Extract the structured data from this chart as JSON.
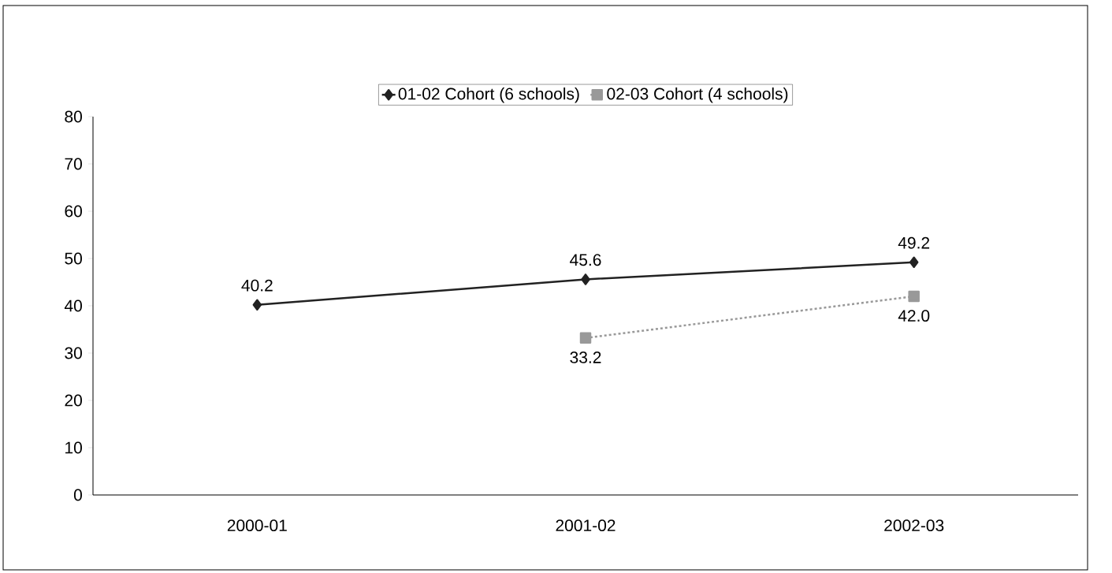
{
  "chart_data": {
    "type": "line",
    "categories": [
      "2000-01",
      "2001-02",
      "2002-03"
    ],
    "series": [
      {
        "name": "01-02 Cohort (6 schools)",
        "color": "#222222",
        "values": [
          40.2,
          45.6,
          49.2
        ],
        "marker": "diamond",
        "line_style": "solid",
        "value_labels": [
          "40.2",
          "45.6",
          "49.2"
        ]
      },
      {
        "name": "02-03 Cohort (4 schools)",
        "color": "#999999",
        "values": [
          null,
          33.2,
          42.0
        ],
        "marker": "square",
        "line_style": "dashed",
        "value_labels": [
          null,
          "33.2",
          "42.0"
        ]
      }
    ],
    "ylim": [
      0,
      80
    ],
    "yticks": [
      0,
      10,
      20,
      30,
      40,
      50,
      60,
      70,
      80
    ],
    "grid": false,
    "legend": "top"
  }
}
